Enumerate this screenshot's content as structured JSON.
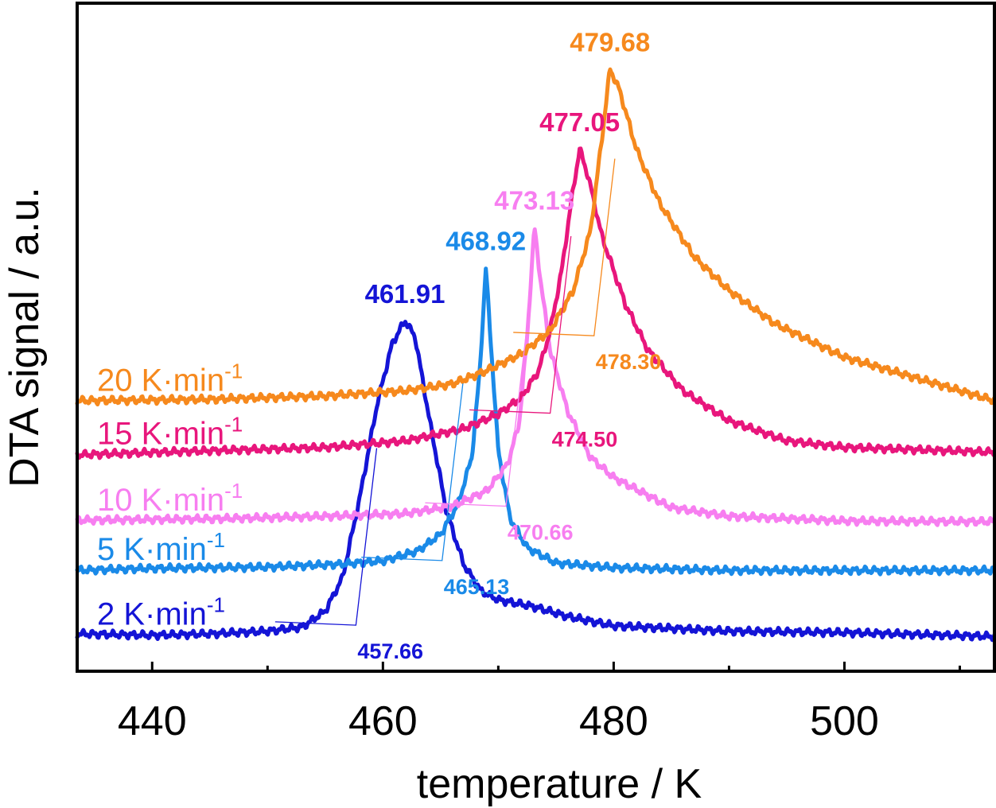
{
  "chart_data": {
    "type": "line",
    "xlabel": "temperature / K",
    "ylabel": "DTA signal / a.u.",
    "xlim": [
      433.5,
      513
    ],
    "ylim": [
      0,
      1
    ],
    "x_ticks": [
      440,
      460,
      480,
      500
    ],
    "x_minor_ticks": [
      450,
      470,
      490,
      510
    ],
    "y_ticks": [],
    "grid": false,
    "series": [
      {
        "name": "2 K·min⁻¹",
        "rate_value": "2 K·min",
        "rate_exp": "-1",
        "color": "#1414d6",
        "peak": 461.91,
        "peak_label": "461.91",
        "onset": 457.66,
        "onset_label": "457.66",
        "points": [
          [
            433.5,
            0.056
          ],
          [
            440,
            0.054
          ],
          [
            445,
            0.056
          ],
          [
            450,
            0.06
          ],
          [
            453,
            0.066
          ],
          [
            455,
            0.09
          ],
          [
            456.5,
            0.14
          ],
          [
            458,
            0.26
          ],
          [
            459.5,
            0.4
          ],
          [
            460.8,
            0.49
          ],
          [
            461.91,
            0.525
          ],
          [
            462.8,
            0.5
          ],
          [
            464,
            0.38
          ],
          [
            465.5,
            0.24
          ],
          [
            467,
            0.16
          ],
          [
            468.5,
            0.12
          ],
          [
            470,
            0.107
          ],
          [
            473,
            0.097
          ],
          [
            476,
            0.082
          ],
          [
            480,
            0.068
          ],
          [
            490,
            0.06
          ],
          [
            500,
            0.058
          ],
          [
            513,
            0.052
          ]
        ]
      },
      {
        "name": "5 K·min⁻¹",
        "rate_value": "5 K·min",
        "rate_exp": "-1",
        "color": "#1a8ae8",
        "peak": 468.92,
        "peak_label": "468.92",
        "onset": 465.13,
        "onset_label": "465.13",
        "points": [
          [
            433.5,
            0.151
          ],
          [
            440,
            0.154
          ],
          [
            450,
            0.156
          ],
          [
            456,
            0.16
          ],
          [
            460,
            0.165
          ],
          [
            463,
            0.18
          ],
          [
            465,
            0.205
          ],
          [
            466.5,
            0.25
          ],
          [
            467.7,
            0.32
          ],
          [
            468.4,
            0.45
          ],
          [
            468.92,
            0.604
          ],
          [
            469.4,
            0.48
          ],
          [
            470,
            0.33
          ],
          [
            471,
            0.23
          ],
          [
            472.5,
            0.185
          ],
          [
            475,
            0.162
          ],
          [
            480,
            0.155
          ],
          [
            490,
            0.151
          ],
          [
            500,
            0.151
          ],
          [
            513,
            0.151
          ]
        ]
      },
      {
        "name": "10 K·min⁻¹",
        "rate_value": "10 K·min",
        "rate_exp": "-1",
        "color": "#f77ef0",
        "peak": 473.13,
        "peak_label": "473.13",
        "onset": 470.66,
        "onset_label": "470.66",
        "points": [
          [
            433.5,
            0.226
          ],
          [
            445,
            0.228
          ],
          [
            455,
            0.232
          ],
          [
            462,
            0.236
          ],
          [
            466,
            0.247
          ],
          [
            469,
            0.27
          ],
          [
            470.8,
            0.31
          ],
          [
            471.8,
            0.37
          ],
          [
            472.5,
            0.5
          ],
          [
            473.13,
            0.665
          ],
          [
            473.7,
            0.58
          ],
          [
            474.5,
            0.48
          ],
          [
            476,
            0.39
          ],
          [
            478,
            0.32
          ],
          [
            480,
            0.29
          ],
          [
            485,
            0.245
          ],
          [
            490,
            0.232
          ],
          [
            500,
            0.225
          ],
          [
            513,
            0.224
          ]
        ]
      },
      {
        "name": "15 K·min⁻¹",
        "rate_value": "15 K·min",
        "rate_exp": "-1",
        "color": "#e8167c",
        "peak": 477.05,
        "peak_label": "477.05",
        "onset": 474.5,
        "onset_label": "474.50",
        "points": [
          [
            433.5,
            0.324
          ],
          [
            445,
            0.33
          ],
          [
            455,
            0.335
          ],
          [
            462,
            0.345
          ],
          [
            467,
            0.363
          ],
          [
            470,
            0.385
          ],
          [
            472,
            0.41
          ],
          [
            473.5,
            0.45
          ],
          [
            474.5,
            0.51
          ],
          [
            475.5,
            0.6
          ],
          [
            476.3,
            0.7
          ],
          [
            477.05,
            0.782
          ],
          [
            477.8,
            0.74
          ],
          [
            479,
            0.65
          ],
          [
            481,
            0.55
          ],
          [
            483,
            0.48
          ],
          [
            486,
            0.42
          ],
          [
            490,
            0.375
          ],
          [
            495,
            0.345
          ],
          [
            500,
            0.335
          ],
          [
            513,
            0.328
          ]
        ]
      },
      {
        "name": "20 K·min⁻¹",
        "rate_value": "20 K·min",
        "rate_exp": "-1",
        "color": "#f6891d",
        "peak": 479.68,
        "peak_label": "479.68",
        "onset": 478.3,
        "onset_label": "478.30",
        "points": [
          [
            433.5,
            0.405
          ],
          [
            445,
            0.407
          ],
          [
            455,
            0.412
          ],
          [
            462,
            0.42
          ],
          [
            466,
            0.43
          ],
          [
            469,
            0.45
          ],
          [
            472,
            0.475
          ],
          [
            474.5,
            0.51
          ],
          [
            476.5,
            0.57
          ],
          [
            478,
            0.66
          ],
          [
            479,
            0.8
          ],
          [
            479.68,
            0.902
          ],
          [
            480.5,
            0.87
          ],
          [
            482,
            0.78
          ],
          [
            484,
            0.7
          ],
          [
            487,
            0.62
          ],
          [
            490,
            0.57
          ],
          [
            494,
            0.52
          ],
          [
            500,
            0.47
          ],
          [
            506,
            0.44
          ],
          [
            513,
            0.405
          ]
        ]
      }
    ]
  }
}
